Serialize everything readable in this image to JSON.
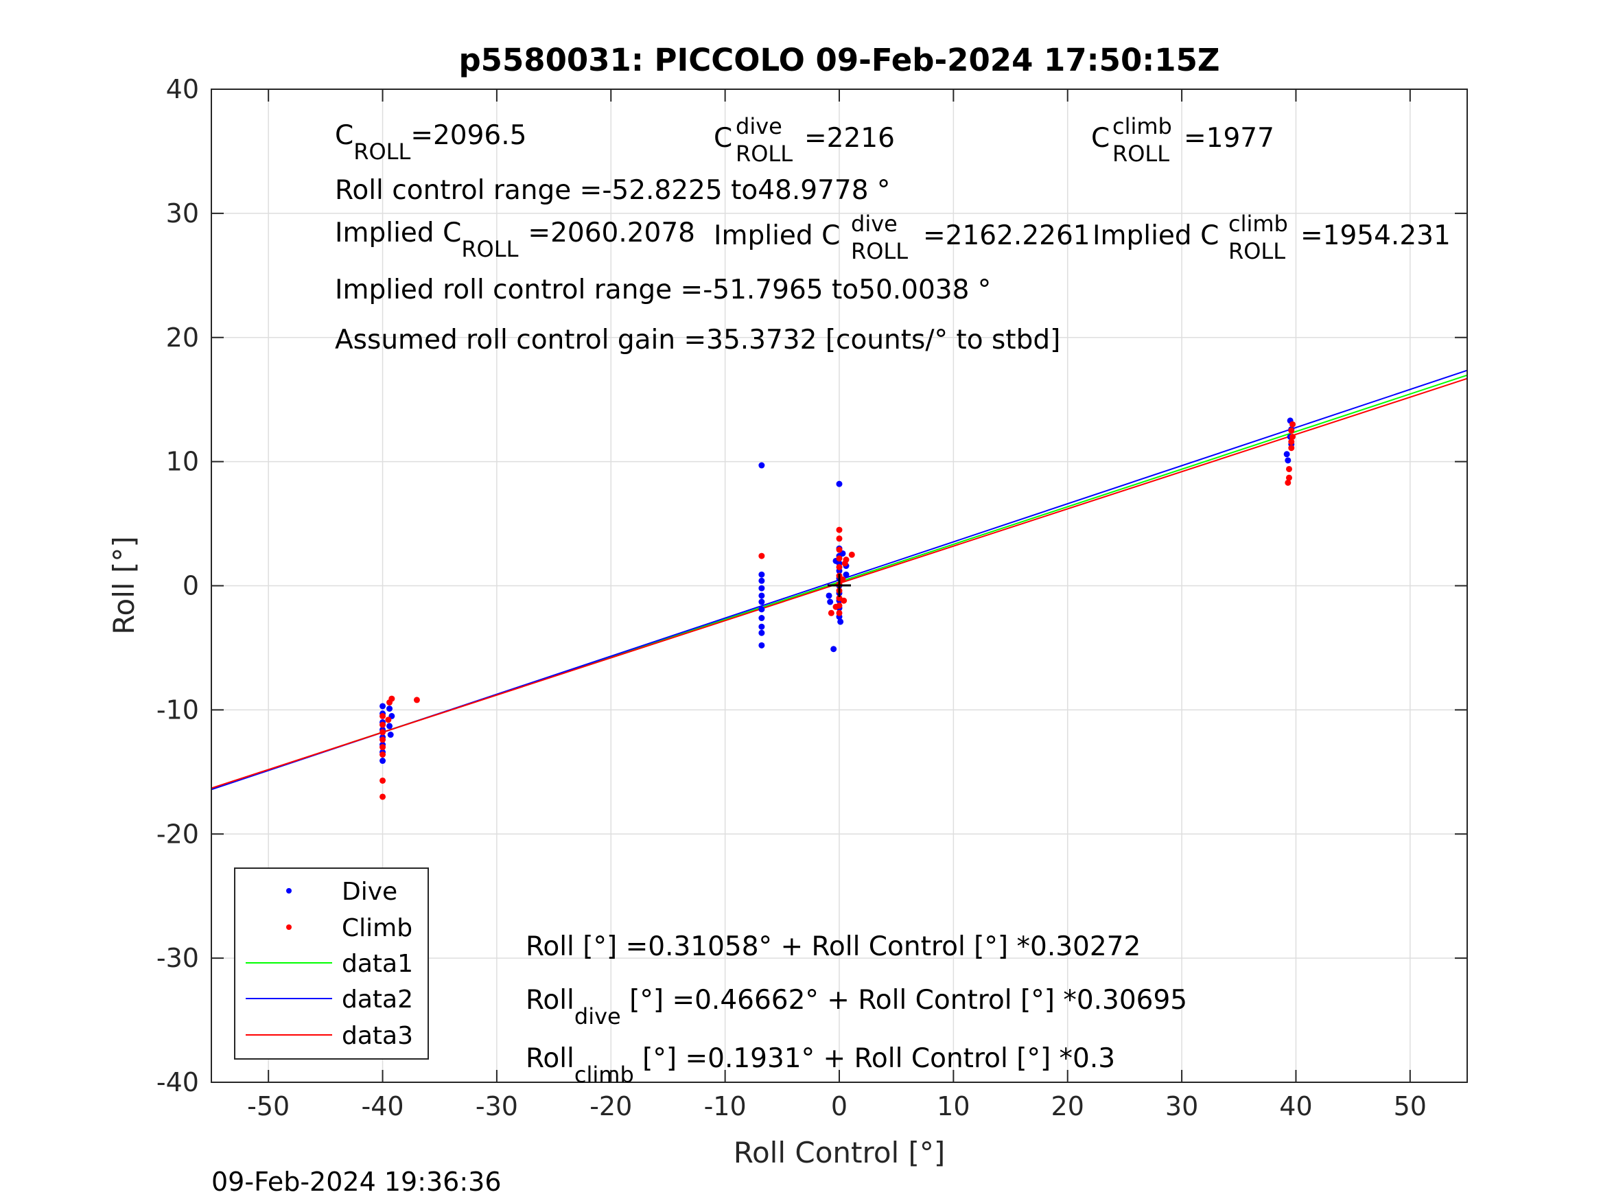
{
  "chart_data": {
    "type": "scatter",
    "title": "p5580031: PICCOLO 09-Feb-2024 17:50:15Z",
    "xlabel": "Roll Control [°]",
    "ylabel": "Roll [°]",
    "xlim": [
      -55,
      55
    ],
    "ylim": [
      -40,
      40
    ],
    "xticks": [
      -50,
      -40,
      -30,
      -20,
      -10,
      0,
      10,
      20,
      30,
      40,
      50
    ],
    "yticks": [
      -40,
      -30,
      -20,
      -10,
      0,
      10,
      20,
      30,
      40
    ],
    "grid": true,
    "legend_position": "bottom-left",
    "timestamp": "09-Feb-2024 19:36:36",
    "annotations": {
      "c_roll_label": "C",
      "c_roll_sub": "ROLL",
      "c_roll_value": "=2096.5",
      "c_roll_dive_sup": "dive",
      "c_roll_dive_value": "=2216",
      "c_roll_climb_sup": "climb",
      "c_roll_climb_value": "=1977",
      "roll_control_range": "Roll control range =-52.8225 to48.9778 °",
      "implied_label": "Implied C",
      "implied_c_roll_value": "=2060.2078",
      "implied_c_roll_dive_value": "=2162.2261",
      "implied_c_roll_climb_value": "=1954.231",
      "implied_range": "Implied roll control range =-51.7965 to50.0038 °",
      "assumed_gain": "Assumed roll control gain =35.3732 [counts/° to stbd]",
      "fit_all": "Roll [°] =0.31058° + Roll Control [°] *0.30272",
      "fit_dive_pre": "Roll",
      "fit_dive_sub": "dive",
      "fit_dive_post": " [°] =0.46662° + Roll Control [°] *0.30695",
      "fit_climb_pre": "Roll",
      "fit_climb_sub": "climb",
      "fit_climb_post": " [°] =0.1931° + Roll Control [°] *0.3"
    },
    "series": [
      {
        "name": "Dive",
        "kind": "points",
        "color": "#0000ff",
        "points": [
          [
            -40,
            -9.7
          ],
          [
            -40,
            -10.3
          ],
          [
            -40,
            -11.0
          ],
          [
            -40,
            -11.6
          ],
          [
            -40,
            -12.2
          ],
          [
            -40,
            -12.8
          ],
          [
            -40,
            -13.4
          ],
          [
            -40,
            -14.1
          ],
          [
            -39.4,
            -9.9
          ],
          [
            -39.2,
            -10.5
          ],
          [
            -39.4,
            -11.3
          ],
          [
            -39.3,
            -12.0
          ],
          [
            -6.8,
            9.7
          ],
          [
            -6.8,
            0.9
          ],
          [
            -6.8,
            0.4
          ],
          [
            -6.8,
            -0.2
          ],
          [
            -6.8,
            -0.8
          ],
          [
            -6.8,
            -1.3
          ],
          [
            -6.8,
            -1.9
          ],
          [
            -6.8,
            -2.6
          ],
          [
            -6.8,
            -3.3
          ],
          [
            -6.8,
            -3.8
          ],
          [
            -6.8,
            -4.8
          ],
          [
            0,
            8.2
          ],
          [
            0,
            3.0
          ],
          [
            0,
            2.4
          ],
          [
            0,
            1.8
          ],
          [
            0,
            1.2
          ],
          [
            0,
            0.6
          ],
          [
            0,
            0.0
          ],
          [
            0,
            -0.6
          ],
          [
            0,
            -1.2
          ],
          [
            0,
            -1.8
          ],
          [
            0,
            -2.5
          ],
          [
            0.3,
            2.6
          ],
          [
            0.6,
            1.6
          ],
          [
            0.6,
            0.9
          ],
          [
            -0.5,
            -5.1
          ],
          [
            -0.8,
            -1.3
          ],
          [
            -0.9,
            -0.8
          ],
          [
            0.1,
            -2.9
          ],
          [
            -0.3,
            2.0
          ],
          [
            39.5,
            13.3
          ],
          [
            39.6,
            12.6
          ],
          [
            39.5,
            12.0
          ],
          [
            39.6,
            11.4
          ],
          [
            39.2,
            10.6
          ],
          [
            39.3,
            10.1
          ]
        ]
      },
      {
        "name": "Climb",
        "kind": "points",
        "color": "#ff0000",
        "points": [
          [
            -40,
            -10.5
          ],
          [
            -40,
            -11.2
          ],
          [
            -40,
            -11.8
          ],
          [
            -40,
            -12.4
          ],
          [
            -40,
            -13.0
          ],
          [
            -40,
            -13.6
          ],
          [
            -40,
            -15.7
          ],
          [
            -40,
            -17.0
          ],
          [
            -39.2,
            -9.1
          ],
          [
            -39.4,
            -9.4
          ],
          [
            -39.5,
            -10.8
          ],
          [
            -37.0,
            -9.2
          ],
          [
            -6.8,
            2.4
          ],
          [
            0,
            4.5
          ],
          [
            0,
            3.8
          ],
          [
            0,
            2.9
          ],
          [
            0,
            2.2
          ],
          [
            0,
            1.5
          ],
          [
            0,
            0.8
          ],
          [
            0,
            0.1
          ],
          [
            0,
            -0.4
          ],
          [
            0,
            -1.0
          ],
          [
            0,
            -1.6
          ],
          [
            0,
            -2.2
          ],
          [
            1.1,
            2.5
          ],
          [
            0.6,
            2.1
          ],
          [
            0.5,
            1.8
          ],
          [
            -0.7,
            -2.2
          ],
          [
            -0.3,
            -1.7
          ],
          [
            0.4,
            -1.2
          ],
          [
            0.3,
            0.5
          ],
          [
            39.7,
            13.0
          ],
          [
            39.6,
            12.5
          ],
          [
            39.7,
            12.0
          ],
          [
            39.6,
            11.6
          ],
          [
            39.6,
            11.1
          ],
          [
            39.4,
            9.4
          ],
          [
            39.4,
            8.7
          ],
          [
            39.3,
            8.3
          ]
        ]
      },
      {
        "name": "data1",
        "kind": "line",
        "color": "#00ff00",
        "intercept": 0.31058,
        "slope": 0.30272
      },
      {
        "name": "data2",
        "kind": "line",
        "color": "#0000ff",
        "intercept": 0.46662,
        "slope": 0.30695
      },
      {
        "name": "data3",
        "kind": "line",
        "color": "#ff0000",
        "intercept": 0.1931,
        "slope": 0.3
      }
    ]
  }
}
